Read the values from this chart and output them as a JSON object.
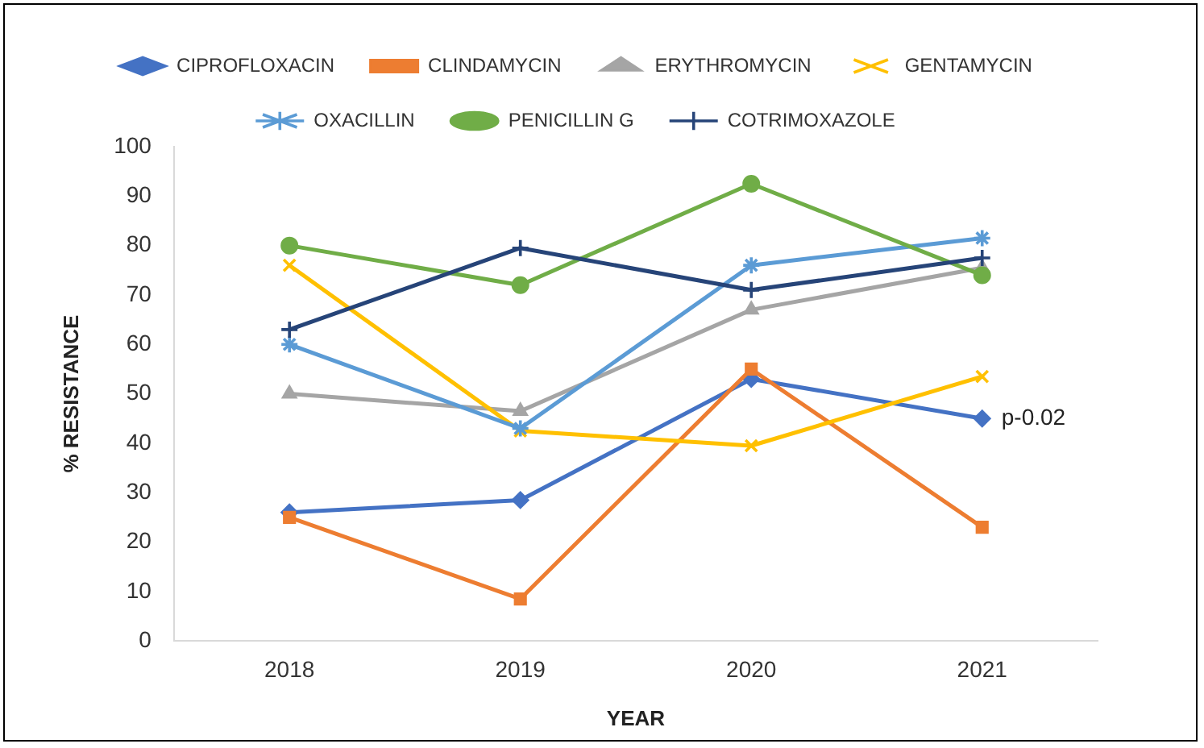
{
  "chart_data": {
    "type": "line",
    "xlabel": "YEAR",
    "ylabel": "% RESISTANCE",
    "categories": [
      "2018",
      "2019",
      "2020",
      "2021"
    ],
    "series": [
      {
        "name": "CIPROFLOXACIN",
        "color": "#4472c4",
        "marker": "diamond",
        "values": [
          26,
          28.5,
          53,
          45
        ]
      },
      {
        "name": "CLINDAMYCIN",
        "color": "#ed7d31",
        "marker": "square",
        "values": [
          25,
          8.5,
          55,
          23
        ]
      },
      {
        "name": "ERYTHROMYCIN",
        "color": "#a5a5a5",
        "marker": "triangle",
        "values": [
          50,
          46.5,
          67,
          75.5
        ]
      },
      {
        "name": "GENTAMYCIN",
        "color": "#ffc000",
        "marker": "x",
        "values": [
          76,
          42.5,
          39.5,
          53.5
        ]
      },
      {
        "name": "OXACILLIN",
        "color": "#5b9bd5",
        "marker": "cross",
        "values": [
          60,
          43,
          76,
          81.5
        ]
      },
      {
        "name": "PENICILLIN G",
        "color": "#70ad47",
        "marker": "circle",
        "values": [
          80,
          72,
          92.5,
          74
        ]
      },
      {
        "name": "COTRIMOXAZOLE",
        "color": "#264478",
        "marker": "plus",
        "values": [
          63,
          79.5,
          71,
          77.5
        ]
      }
    ],
    "ylim": [
      0,
      100
    ],
    "yticks": [
      0,
      10,
      20,
      30,
      40,
      50,
      60,
      70,
      80,
      90,
      100
    ],
    "grid": false,
    "legend": "top",
    "line_style": "solid",
    "annotations": [
      {
        "text": "p-0.02",
        "x": "2021",
        "y": 45
      }
    ]
  }
}
